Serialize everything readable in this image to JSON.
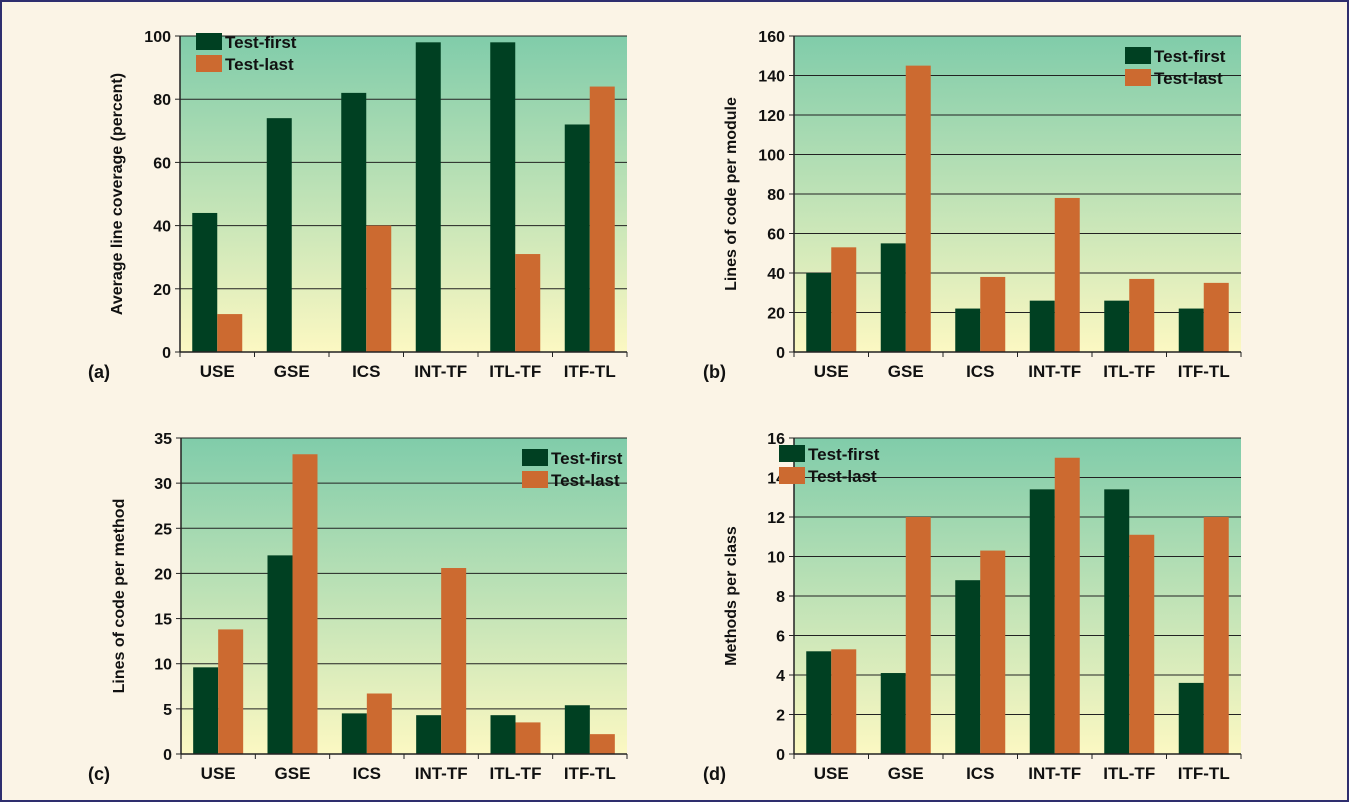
{
  "colors": {
    "background": "#fbf4e6",
    "border": "#2e2e6e",
    "test_first": "#004022",
    "test_last": "#cc6a30",
    "plot_top": "#80ccaa",
    "plot_bottom": "#fcf8c2"
  },
  "chart_data": [
    {
      "type": "bar",
      "panel_label": "(a)",
      "ylabel": "Average line coverage (percent)",
      "categories": [
        "USE",
        "GSE",
        "ICS",
        "INT-TF",
        "ITL-TF",
        "ITF-TL"
      ],
      "ylim": [
        0,
        100
      ],
      "yticks": [
        "0",
        "20",
        "40",
        "60",
        "80",
        "100"
      ],
      "legend_position": "top-left",
      "series": [
        {
          "name": "Test-first",
          "values": [
            44,
            74,
            82,
            98,
            98,
            72
          ]
        },
        {
          "name": "Test-last",
          "values": [
            12,
            0,
            40,
            0,
            31,
            84
          ]
        }
      ]
    },
    {
      "type": "bar",
      "panel_label": "(b)",
      "ylabel": "Lines of code per module",
      "categories": [
        "USE",
        "GSE",
        "ICS",
        "INT-TF",
        "ITL-TF",
        "ITF-TL"
      ],
      "ylim": [
        0,
        160
      ],
      "yticks": [
        "0",
        "20",
        "40",
        "60",
        "80",
        "100",
        "120",
        "140",
        "160"
      ],
      "legend_position": "top-right",
      "series": [
        {
          "name": "Test-first",
          "values": [
            40,
            55,
            22,
            26,
            26,
            22
          ]
        },
        {
          "name": "Test-last",
          "values": [
            53,
            145,
            38,
            78,
            37,
            35
          ]
        }
      ]
    },
    {
      "type": "bar",
      "panel_label": "(c)",
      "ylabel": "Lines of code per method",
      "categories": [
        "USE",
        "GSE",
        "ICS",
        "INT-TF",
        "ITL-TF",
        "ITF-TL"
      ],
      "ylim": [
        0,
        35
      ],
      "yticks": [
        "0",
        "5",
        "10",
        "15",
        "20",
        "25",
        "30",
        "35"
      ],
      "legend_position": "top-right",
      "series": [
        {
          "name": "Test-first",
          "values": [
            9.6,
            22,
            4.5,
            4.3,
            4.3,
            5.4
          ]
        },
        {
          "name": "Test-last",
          "values": [
            13.8,
            33.2,
            6.7,
            20.6,
            3.5,
            2.2
          ]
        }
      ]
    },
    {
      "type": "bar",
      "panel_label": "(d)",
      "ylabel": "Methods per class",
      "categories": [
        "USE",
        "GSE",
        "ICS",
        "INT-TF",
        "ITL-TF",
        "ITF-TL"
      ],
      "ylim": [
        0,
        16
      ],
      "yticks": [
        "0",
        "2",
        "4",
        "6",
        "8",
        "10",
        "12",
        "14",
        "16"
      ],
      "legend_position": "top-left",
      "series": [
        {
          "name": "Test-first",
          "values": [
            5.2,
            4.1,
            8.8,
            13.4,
            13.4,
            3.6
          ]
        },
        {
          "name": "Test-last",
          "values": [
            5.3,
            12,
            10.3,
            15,
            11.1,
            12
          ]
        }
      ]
    }
  ]
}
